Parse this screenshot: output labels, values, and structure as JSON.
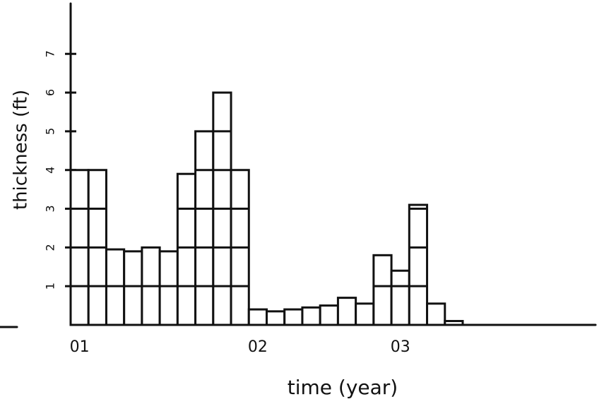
{
  "chart_data": {
    "type": "bar",
    "x_label": "time (year)",
    "y_label": "thickness (ft)",
    "categories": [
      "01",
      null,
      null,
      null,
      null,
      null,
      null,
      null,
      null,
      null,
      "02",
      null,
      null,
      null,
      null,
      null,
      null,
      null,
      "03",
      null,
      null,
      null
    ],
    "values": [
      4,
      4,
      1.95,
      1.9,
      2,
      1.9,
      3.9,
      5,
      6,
      4,
      0.4,
      0.35,
      0.4,
      0.45,
      0.5,
      0.7,
      0.55,
      1.8,
      1.4,
      3.1,
      0.55,
      0.1
    ],
    "color": "#ffffff",
    "ylim": [
      0,
      8.3
    ],
    "yticks": [
      1,
      2,
      3,
      4,
      5,
      6,
      7
    ]
  }
}
